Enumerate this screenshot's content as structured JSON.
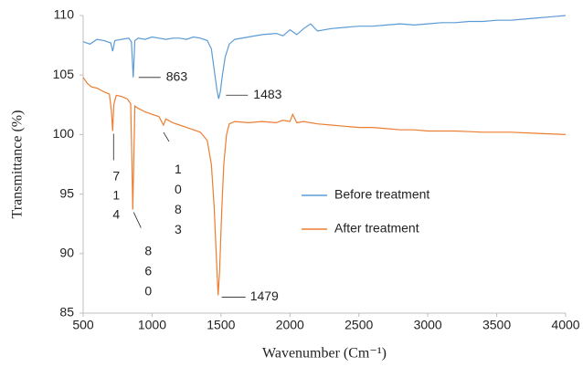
{
  "chart_data": {
    "type": "line",
    "xlabel": "Wavenumber (Cm⁻¹)",
    "ylabel": "Transmittance (%)",
    "xlim": [
      500,
      4000
    ],
    "xticks": [
      500,
      1000,
      1500,
      2000,
      2500,
      3000,
      3500,
      4000
    ],
    "ylim": [
      85,
      110
    ],
    "yticks": [
      85,
      90,
      95,
      100,
      105,
      110
    ],
    "legend": "right",
    "series": [
      {
        "name": "Before treatment",
        "color": "#5b9bd5",
        "x": [
          500,
          550,
          600,
          650,
          700,
          714,
          730,
          780,
          830,
          850,
          863,
          875,
          900,
          950,
          1000,
          1050,
          1100,
          1150,
          1200,
          1250,
          1300,
          1350,
          1400,
          1430,
          1450,
          1470,
          1483,
          1495,
          1510,
          1530,
          1560,
          1600,
          1700,
          1800,
          1900,
          1950,
          2000,
          2050,
          2100,
          2150,
          2200,
          2300,
          2400,
          2500,
          2600,
          2700,
          2800,
          2900,
          3000,
          3100,
          3200,
          3300,
          3400,
          3500,
          3600,
          3700,
          3800,
          3900,
          4000
        ],
        "values": [
          107.8,
          107.6,
          108.0,
          107.9,
          107.7,
          107.0,
          107.9,
          108.0,
          108.1,
          107.8,
          104.8,
          107.9,
          108.1,
          108.0,
          108.2,
          108.1,
          108.0,
          108.1,
          108.1,
          108.0,
          108.2,
          108.1,
          107.9,
          107.2,
          105.5,
          103.8,
          103.0,
          103.6,
          105.0,
          106.5,
          107.6,
          108.0,
          108.2,
          108.4,
          108.5,
          108.3,
          108.8,
          108.4,
          108.9,
          109.3,
          108.7,
          108.9,
          109.0,
          109.1,
          109.1,
          109.2,
          109.3,
          109.2,
          109.3,
          109.4,
          109.4,
          109.5,
          109.5,
          109.6,
          109.6,
          109.7,
          109.8,
          109.9,
          110.0
        ]
      },
      {
        "name": "After treatment",
        "color": "#ed7d31",
        "x": [
          500,
          530,
          560,
          600,
          650,
          690,
          705,
          714,
          722,
          740,
          780,
          820,
          845,
          853,
          860,
          866,
          875,
          900,
          950,
          1000,
          1050,
          1083,
          1100,
          1150,
          1200,
          1250,
          1300,
          1350,
          1400,
          1430,
          1450,
          1465,
          1479,
          1490,
          1505,
          1520,
          1540,
          1560,
          1600,
          1700,
          1800,
          1900,
          1950,
          2000,
          2020,
          2050,
          2100,
          2200,
          2300,
          2400,
          2500,
          2600,
          2700,
          2800,
          2900,
          3000,
          3200,
          3400,
          3600,
          3800,
          4000
        ],
        "values": [
          104.8,
          104.3,
          104.0,
          103.9,
          103.6,
          103.4,
          102.0,
          100.3,
          102.5,
          103.3,
          103.2,
          103.0,
          102.6,
          98.0,
          93.7,
          97.0,
          102.4,
          102.2,
          101.9,
          101.7,
          101.5,
          100.8,
          101.3,
          101.0,
          100.8,
          100.6,
          100.4,
          100.2,
          99.5,
          97.5,
          94.0,
          90.0,
          86.5,
          88.5,
          93.5,
          97.5,
          100.0,
          100.9,
          101.1,
          101.0,
          101.1,
          101.0,
          101.2,
          101.1,
          101.7,
          101.0,
          101.1,
          100.9,
          100.8,
          100.7,
          100.6,
          100.6,
          100.5,
          100.4,
          100.4,
          100.3,
          100.3,
          100.2,
          100.2,
          100.1,
          100.0
        ]
      }
    ],
    "annotations": [
      {
        "text": "863",
        "x": 863,
        "y": 104.8
      },
      {
        "text": "1483",
        "x": 1483,
        "y": 103.0
      },
      {
        "text": "714",
        "x": 714,
        "y": 100.3
      },
      {
        "text": "1083",
        "x": 1083,
        "y": 100.8
      },
      {
        "text": "860",
        "x": 860,
        "y": 93.7
      },
      {
        "text": "1479",
        "x": 1479,
        "y": 86.5
      }
    ]
  }
}
